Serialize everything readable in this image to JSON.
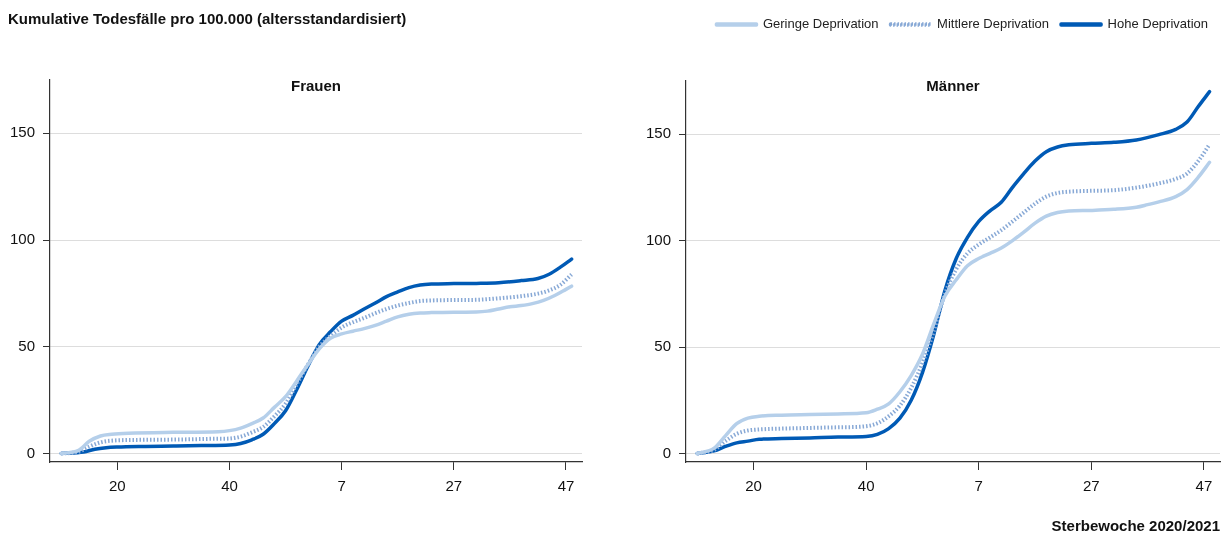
{
  "chart_data": [
    {
      "type": "line",
      "title": "Frauen",
      "ylabel": "Kumulative Todesfälle pro 100.000 (altersstandardisiert)",
      "xlim": [
        "2020-02-17",
        "2021-12-12"
      ],
      "xticks": [
        {
          "value": "2020-05-11",
          "label": "20"
        },
        {
          "value": "2020-09-28",
          "label": "40"
        },
        {
          "value": "2021-02-15",
          "label": "7"
        },
        {
          "value": "2021-07-05",
          "label": "27"
        },
        {
          "value": "2021-11-22",
          "label": "47"
        }
      ],
      "ylim": [
        -4,
        175
      ],
      "yticks": [
        0,
        50,
        100,
        150
      ],
      "grid": "y",
      "marker": "none",
      "series": [
        {
          "color": "#b5cfea",
          "x": [
            "2020-03-02",
            "2020-03-23",
            "2020-04-06",
            "2020-04-20",
            "2020-05-04",
            "2020-05-25",
            "2020-07-20",
            "2020-09-14",
            "2020-09-28",
            "2020-10-12",
            "2020-10-26",
            "2020-11-09",
            "2020-11-23",
            "2020-12-07",
            "2020-12-21",
            "2021-01-04",
            "2021-01-18",
            "2021-02-01",
            "2021-02-15",
            "2021-03-01",
            "2021-03-15",
            "2021-03-29",
            "2021-04-12",
            "2021-04-26",
            "2021-05-10",
            "2021-05-24",
            "2021-06-07",
            "2021-07-05",
            "2021-08-02",
            "2021-08-16",
            "2021-08-30",
            "2021-09-13",
            "2021-09-27",
            "2021-10-11",
            "2021-10-25",
            "2021-11-08",
            "2021-11-22",
            "2021-11-29"
          ],
          "values": [
            0,
            1.3,
            5.7,
            8.2,
            9,
            9.5,
            9.9,
            10.2,
            10.7,
            11.9,
            14,
            16.6,
            21.6,
            26.6,
            34,
            41.7,
            49,
            54,
            56,
            57.3,
            58.5,
            60,
            62,
            64,
            65.2,
            65.8,
            66,
            66.2,
            66.3,
            66.7,
            67.7,
            68.7,
            69.3,
            70.2,
            71.7,
            74,
            76.9,
            78.4
          ]
        },
        {
          "color": "#88a9d6",
          "line_style": "dotted",
          "x": [
            "2020-03-02",
            "2020-03-23",
            "2020-04-06",
            "2020-04-20",
            "2020-05-04",
            "2020-06-15",
            "2020-07-20",
            "2020-09-14",
            "2020-09-28",
            "2020-10-12",
            "2020-10-26",
            "2020-11-09",
            "2020-11-23",
            "2020-12-07",
            "2020-12-21",
            "2021-01-04",
            "2021-01-18",
            "2021-02-01",
            "2021-02-15",
            "2021-03-01",
            "2021-03-15",
            "2021-03-29",
            "2021-04-12",
            "2021-04-26",
            "2021-05-10",
            "2021-05-24",
            "2021-06-07",
            "2021-07-05",
            "2021-08-02",
            "2021-08-30",
            "2021-09-27",
            "2021-10-18",
            "2021-11-01",
            "2021-11-15",
            "2021-11-29"
          ],
          "values": [
            0,
            0.7,
            3.2,
            5.2,
            6,
            6.4,
            6.5,
            6.9,
            7,
            7.9,
            9.9,
            12.4,
            17.4,
            23.3,
            32.5,
            41.7,
            50,
            55,
            59,
            61.5,
            63.5,
            65.7,
            67.7,
            69.3,
            70.5,
            71.4,
            71.7,
            71.9,
            72,
            72.7,
            73.7,
            74.9,
            76.4,
            79,
            83.9
          ]
        },
        {
          "color": "#005ab5",
          "x": [
            "2020-03-02",
            "2020-03-30",
            "2020-04-13",
            "2020-04-27",
            "2020-05-11",
            "2020-06-15",
            "2020-07-20",
            "2020-08-24",
            "2020-09-28",
            "2020-10-12",
            "2020-10-26",
            "2020-11-09",
            "2020-11-23",
            "2020-12-07",
            "2020-12-21",
            "2021-01-04",
            "2021-01-18",
            "2021-02-01",
            "2021-02-15",
            "2021-03-01",
            "2021-03-15",
            "2021-03-29",
            "2021-04-12",
            "2021-04-26",
            "2021-05-10",
            "2021-05-24",
            "2021-06-07",
            "2021-07-05",
            "2021-08-02",
            "2021-08-30",
            "2021-09-27",
            "2021-10-18",
            "2021-11-01",
            "2021-11-15",
            "2021-11-29"
          ],
          "values": [
            0,
            0.7,
            2,
            2.7,
            3,
            3.3,
            3.5,
            3.7,
            4,
            4.7,
            6.4,
            9,
            14,
            20,
            30,
            41,
            51,
            57,
            62,
            64.7,
            67.7,
            70.5,
            73.5,
            75.7,
            77.7,
            78.9,
            79.4,
            79.6,
            79.7,
            80,
            81,
            82,
            84,
            87.3,
            91.1
          ]
        }
      ]
    },
    {
      "type": "line",
      "title": "Männer",
      "xlabel": "Sterbewoche 2020/2021",
      "xlim": [
        "2020-02-17",
        "2021-12-12"
      ],
      "xticks": [
        {
          "value": "2020-05-11",
          "label": "20"
        },
        {
          "value": "2020-09-28",
          "label": "40"
        },
        {
          "value": "2021-02-15",
          "label": "7"
        },
        {
          "value": "2021-07-05",
          "label": "27"
        },
        {
          "value": "2021-11-22",
          "label": "47"
        }
      ],
      "ylim": [
        -4,
        175
      ],
      "yticks": [
        0,
        50,
        100,
        150
      ],
      "grid": "y",
      "legend": "top right",
      "marker": "none",
      "series": [
        {
          "name": "Geringe Deprivation",
          "color": "#b5cfea",
          "x": [
            "2020-03-02",
            "2020-03-23",
            "2020-04-06",
            "2020-04-20",
            "2020-05-04",
            "2020-05-18",
            "2020-06-15",
            "2020-07-20",
            "2020-08-24",
            "2020-09-28",
            "2020-10-12",
            "2020-10-26",
            "2020-11-09",
            "2020-11-23",
            "2020-12-07",
            "2020-12-21",
            "2021-01-04",
            "2021-01-18",
            "2021-02-01",
            "2021-02-15",
            "2021-03-01",
            "2021-03-15",
            "2021-03-29",
            "2021-04-12",
            "2021-04-26",
            "2021-05-10",
            "2021-05-24",
            "2021-06-07",
            "2021-07-05",
            "2021-08-02",
            "2021-08-30",
            "2021-09-13",
            "2021-09-27",
            "2021-10-18",
            "2021-11-01",
            "2021-11-15",
            "2021-11-29"
          ],
          "values": [
            0,
            2.5,
            8.3,
            14,
            16.6,
            17.5,
            18,
            18.3,
            18.6,
            19.1,
            20.8,
            23.3,
            29,
            36.6,
            46.6,
            60.8,
            74,
            81.6,
            88.2,
            91.6,
            94,
            96.5,
            100,
            104,
            108.2,
            111.5,
            113.2,
            113.9,
            114.2,
            114.7,
            115.7,
            116.9,
            118.2,
            120.7,
            124,
            129.8,
            136.8
          ]
        },
        {
          "name": "Mittlere Deprivation",
          "color": "#88a9d6",
          "line_style": "dotted",
          "x": [
            "2020-03-02",
            "2020-03-23",
            "2020-04-06",
            "2020-04-20",
            "2020-05-04",
            "2020-05-18",
            "2020-06-15",
            "2020-07-20",
            "2020-08-24",
            "2020-09-28",
            "2020-10-12",
            "2020-10-26",
            "2020-11-09",
            "2020-11-23",
            "2020-12-07",
            "2020-12-21",
            "2021-01-04",
            "2021-01-18",
            "2021-02-01",
            "2021-02-15",
            "2021-03-01",
            "2021-03-15",
            "2021-03-29",
            "2021-04-12",
            "2021-04-26",
            "2021-05-10",
            "2021-05-24",
            "2021-06-07",
            "2021-07-05",
            "2021-08-02",
            "2021-08-30",
            "2021-09-27",
            "2021-10-18",
            "2021-11-01",
            "2021-11-15",
            "2021-11-29"
          ],
          "values": [
            0,
            1.7,
            5.8,
            9.2,
            10.8,
            11.3,
            11.7,
            12,
            12.3,
            12.8,
            14.2,
            17.5,
            22.5,
            30.8,
            42.5,
            57.4,
            74.9,
            86.6,
            94,
            98.2,
            101.5,
            104.9,
            109,
            113.2,
            117.4,
            120.7,
            122.4,
            123,
            123.4,
            123.7,
            124.9,
            126.9,
            129,
            131.5,
            137.4,
            145.2
          ]
        },
        {
          "name": "Hohe Deprivation",
          "color": "#005ab5",
          "x": [
            "2020-03-02",
            "2020-03-23",
            "2020-04-06",
            "2020-04-20",
            "2020-05-04",
            "2020-05-18",
            "2020-06-15",
            "2020-07-20",
            "2020-08-24",
            "2020-09-28",
            "2020-10-12",
            "2020-10-26",
            "2020-11-09",
            "2020-11-23",
            "2020-12-07",
            "2020-12-21",
            "2021-01-04",
            "2021-01-18",
            "2021-02-01",
            "2021-02-15",
            "2021-03-01",
            "2021-03-15",
            "2021-03-29",
            "2021-04-12",
            "2021-04-26",
            "2021-05-10",
            "2021-05-24",
            "2021-06-07",
            "2021-07-05",
            "2021-08-02",
            "2021-08-30",
            "2021-09-27",
            "2021-10-18",
            "2021-11-01",
            "2021-11-15",
            "2021-11-29"
          ],
          "values": [
            0,
            1.2,
            3.3,
            5,
            5.8,
            6.7,
            7,
            7.3,
            7.7,
            8,
            9,
            11.7,
            16.6,
            25,
            38,
            55.8,
            76.6,
            91.6,
            101.5,
            109,
            114,
            118,
            125,
            131.5,
            137.4,
            141.8,
            144,
            145,
            145.7,
            146.2,
            147.3,
            149.8,
            152.3,
            155.7,
            163,
            170
          ]
        }
      ]
    }
  ]
}
